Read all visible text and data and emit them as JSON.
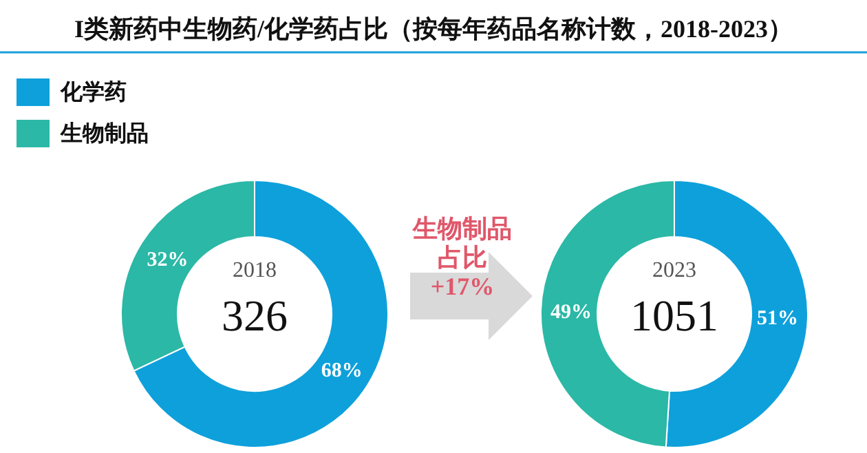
{
  "chart_data": [
    {
      "type": "donut",
      "title": "I类新药中生物药/化学药占比（按每年药品名称计数，2018-2023）",
      "categories": [
        "化学药",
        "生物制品"
      ],
      "values": [
        68,
        32
      ],
      "colors": [
        "#0ea0db",
        "#2bb8a6"
      ],
      "value_labels": [
        "68%",
        "32%"
      ],
      "legend": "top left",
      "annotations": [
        "2018",
        "326"
      ]
    },
    {
      "type": "donut",
      "categories": [
        null,
        null
      ],
      "values": [
        51,
        49
      ],
      "colors": [
        "#0ea0db",
        "#2bb8a6"
      ],
      "value_labels": [
        "51%",
        "49%"
      ],
      "annotations": [
        "2023",
        "1051",
        "生物制品",
        "占比",
        "+17%"
      ]
    }
  ]
}
